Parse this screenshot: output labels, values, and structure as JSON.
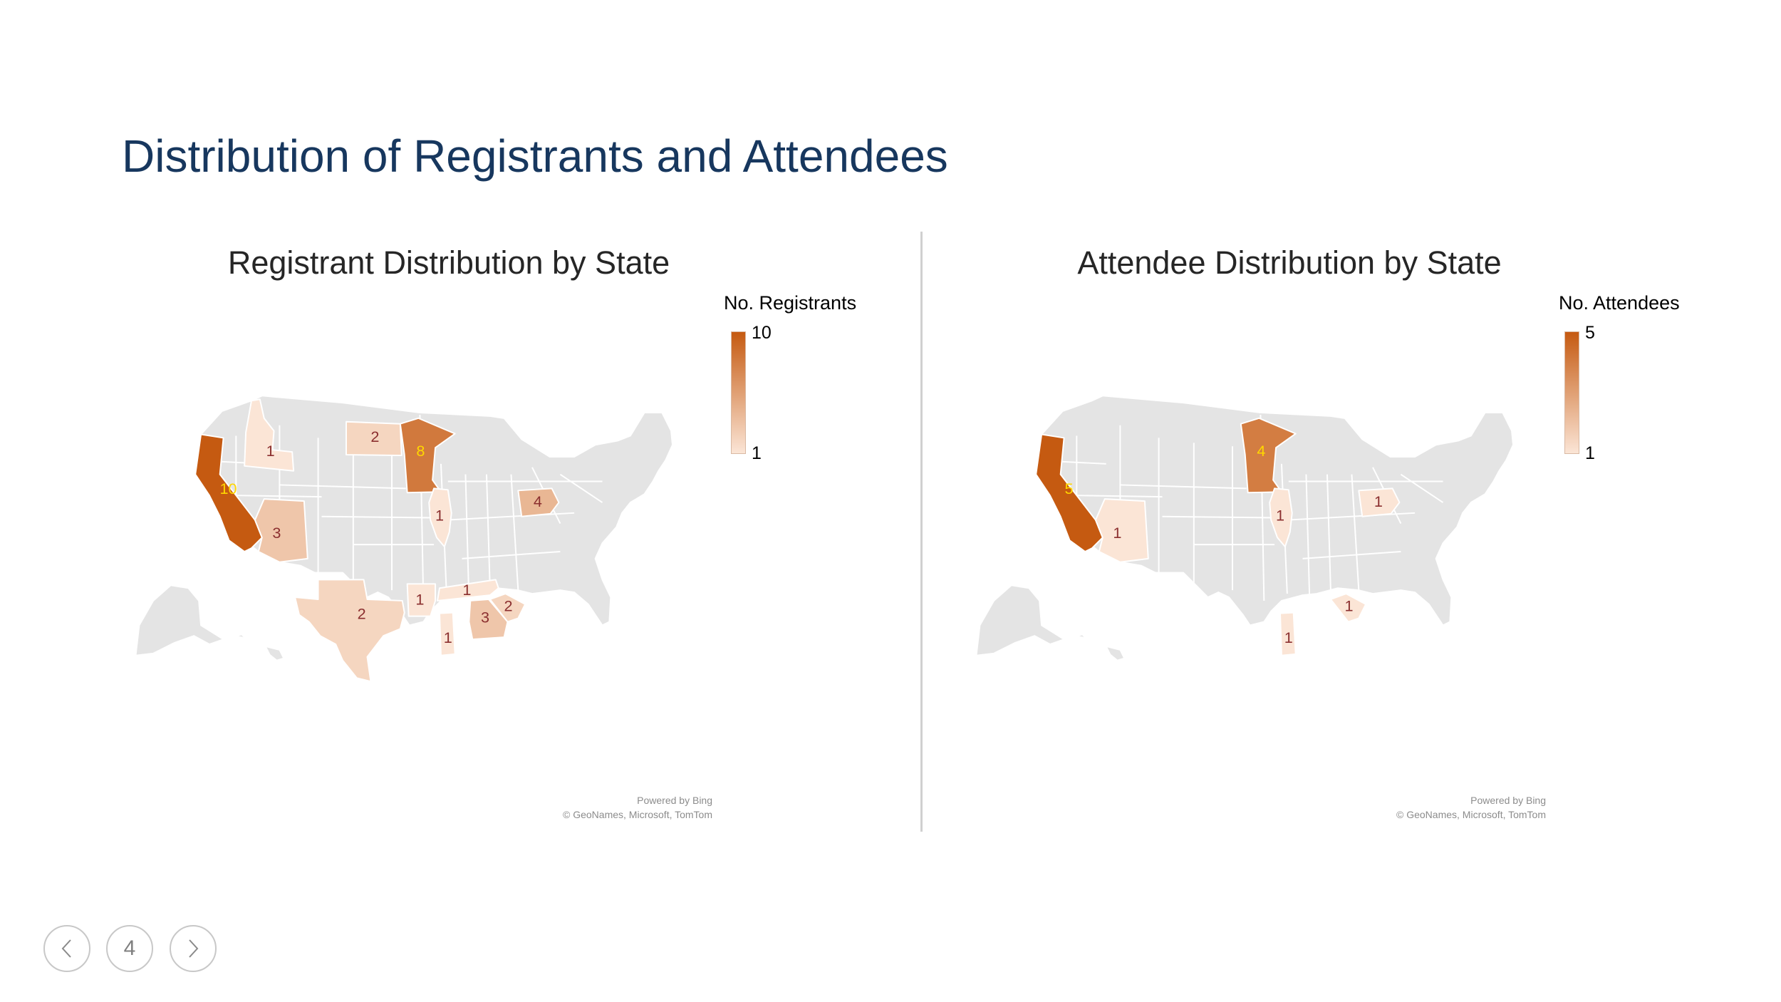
{
  "slide": {
    "title": "Distribution of Registrants and Attendees",
    "page_number": "4"
  },
  "colors": {
    "title": "#17375e",
    "map_base": "#e4e4e4",
    "scale_high": "#c55a11",
    "scale_low": "#fbe5d6"
  },
  "chart_data": [
    {
      "type": "choropleth",
      "title": "Registrant Distribution by State",
      "legend_title": "No. Registrants",
      "scale_min": 1,
      "scale_max": 10,
      "attribution": [
        "Powered by Bing",
        "© GeoNames, Microsoft, TomTom"
      ],
      "states": [
        {
          "state": "California",
          "value": 10
        },
        {
          "state": "Minnesota",
          "value": 8
        },
        {
          "state": "Pennsylvania",
          "value": 4
        },
        {
          "state": "Arizona",
          "value": 3
        },
        {
          "state": "Georgia",
          "value": 3
        },
        {
          "state": "North Dakota",
          "value": 2
        },
        {
          "state": "Texas",
          "value": 2
        },
        {
          "state": "South Carolina",
          "value": 2
        },
        {
          "state": "Idaho",
          "value": 1
        },
        {
          "state": "Illinois",
          "value": 1
        },
        {
          "state": "Arkansas",
          "value": 1
        },
        {
          "state": "Mississippi",
          "value": 1
        },
        {
          "state": "Tennessee",
          "value": 1
        }
      ]
    },
    {
      "type": "choropleth",
      "title": "Attendee Distribution by State",
      "legend_title": "No. Attendees",
      "scale_min": 1,
      "scale_max": 5,
      "attribution": [
        "Powered by Bing",
        "© GeoNames, Microsoft, TomTom"
      ],
      "states": [
        {
          "state": "California",
          "value": 5
        },
        {
          "state": "Minnesota",
          "value": 4
        },
        {
          "state": "Arizona",
          "value": 1
        },
        {
          "state": "Illinois",
          "value": 1
        },
        {
          "state": "Pennsylvania",
          "value": 1
        },
        {
          "state": "Mississippi",
          "value": 1
        },
        {
          "state": "South Carolina",
          "value": 1
        }
      ]
    }
  ]
}
